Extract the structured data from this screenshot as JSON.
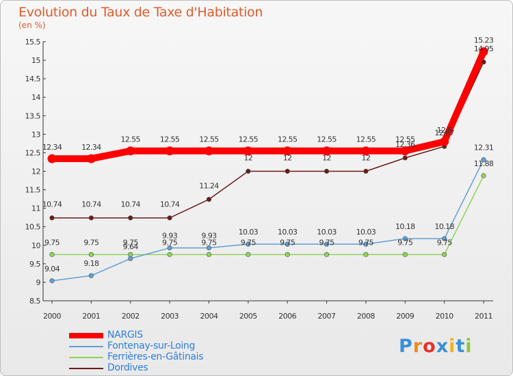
{
  "chart_data": {
    "type": "line",
    "title": "Evolution du Taux de Taxe d'Habitation",
    "ylabel": "(en %)",
    "x": [
      "2000",
      "2001",
      "2002",
      "2003",
      "2004",
      "2005",
      "2006",
      "2007",
      "2008",
      "2009",
      "2010",
      "2011"
    ],
    "ylim": [
      8.5,
      15.5
    ],
    "yticks": [
      "8.5",
      "9",
      "9.5",
      "10",
      "10.5",
      "11",
      "11.5",
      "12",
      "12.5",
      "13",
      "13.5",
      "14",
      "14.5",
      "15",
      "15.5"
    ],
    "grid": false,
    "legend_position": "bottom-left",
    "series": [
      {
        "name": "NARGIS",
        "color": "#ff0000",
        "values": [
          12.34,
          12.34,
          12.55,
          12.55,
          12.55,
          12.55,
          12.55,
          12.55,
          12.55,
          12.55,
          12.8,
          15.23
        ],
        "labels": [
          "12.34",
          "12.34",
          "12.55",
          "12.55",
          "12.55",
          "12.55",
          "12.55",
          "12.55",
          "12.55",
          "12.55",
          "12.8",
          "15.23"
        ]
      },
      {
        "name": "Fontenay-sur-Loing",
        "color": "#5f9fd6",
        "values": [
          9.04,
          9.18,
          9.64,
          9.93,
          9.93,
          10.03,
          10.03,
          10.03,
          10.03,
          10.18,
          10.18,
          12.31
        ],
        "labels": [
          "9.04",
          "9.18",
          "9.64",
          "9.93",
          "9.93",
          "10.03",
          "10.03",
          "10.03",
          "10.03",
          "10.18",
          "10.18",
          "12.31"
        ]
      },
      {
        "name": "Ferrières-en-Gâtinais",
        "color": "#8fd35a",
        "values": [
          9.75,
          9.75,
          9.75,
          9.75,
          9.75,
          9.75,
          9.75,
          9.75,
          9.75,
          9.75,
          9.75,
          11.88
        ],
        "labels": [
          "9.75",
          "9.75",
          "9.75",
          "9.75",
          "9.75",
          "9.75",
          "9.75",
          "9.75",
          "9.75",
          "9.75",
          "9.75",
          "11.88"
        ]
      },
      {
        "name": "Dordives",
        "color": "#6b1a1a",
        "values": [
          10.74,
          10.74,
          10.74,
          10.74,
          11.24,
          12,
          12,
          12,
          12,
          12.36,
          12.67,
          14.95
        ],
        "labels": [
          "10.74",
          "10.74",
          "10.74",
          "10.74",
          "11.24",
          "12",
          "12",
          "12",
          "12",
          "12.36",
          "12.67",
          "14.95"
        ]
      }
    ]
  },
  "logo": {
    "text": "Proxiti",
    "colors": [
      "#3a8fd8",
      "#f08a1c",
      "#e8302a",
      "#3a8fd8",
      "#f0b41c",
      "#3a8fd8",
      "#8cc63f"
    ]
  }
}
